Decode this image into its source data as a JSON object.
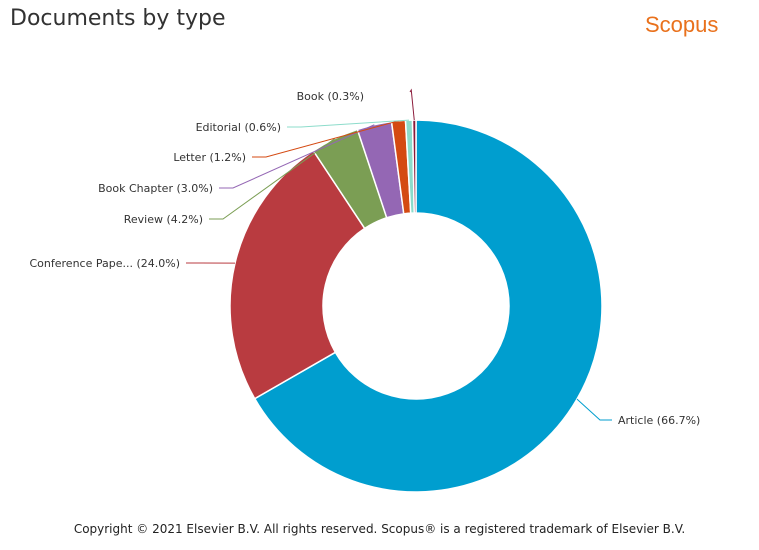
{
  "header": {
    "title": "Documents by type",
    "logo_text": "Scopus"
  },
  "footer": {
    "copyright": "Copyright © 2021 Elsevier B.V. All rights reserved. Scopus® is a registered trademark of Elsevier B.V."
  },
  "chart_data": {
    "type": "pie",
    "variant": "donut",
    "title": "Documents by type",
    "slices": [
      {
        "label": "Article (66.7%)",
        "category": "Article",
        "value": 66.7,
        "color": "#009ecf"
      },
      {
        "label": "Conference Pape... (24.0%)",
        "category": "Conference Paper",
        "value": 24.0,
        "color": "#b93b40"
      },
      {
        "label": "Review (4.2%)",
        "category": "Review",
        "value": 4.2,
        "color": "#7b9e54"
      },
      {
        "label": "Book Chapter (3.0%)",
        "category": "Book Chapter",
        "value": 3.0,
        "color": "#9467b4"
      },
      {
        "label": "Letter (1.2%)",
        "category": "Letter",
        "value": 1.2,
        "color": "#d44a12"
      },
      {
        "label": "Editorial (0.6%)",
        "category": "Editorial",
        "value": 0.6,
        "color": "#8ddccb"
      },
      {
        "label": "Book (0.3%)",
        "category": "Book",
        "value": 0.3,
        "color": "#8b1a3a"
      }
    ]
  }
}
